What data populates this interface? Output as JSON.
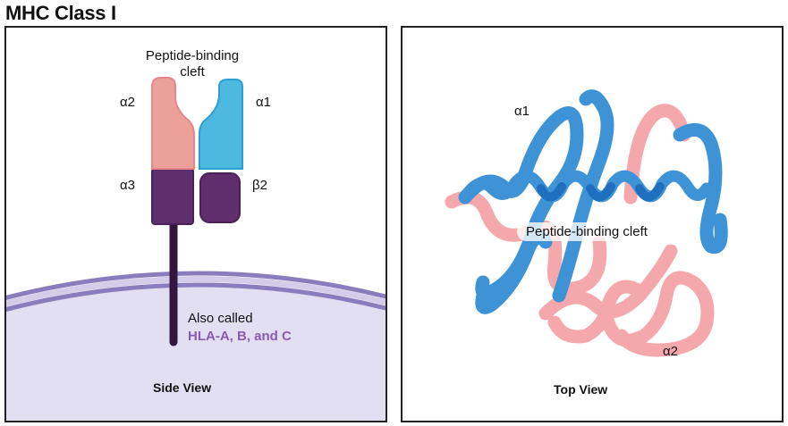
{
  "title": "MHC Class I",
  "side_view": {
    "caption": "Side View",
    "cleft_line1": "Peptide-binding",
    "cleft_line2": "cleft",
    "alpha2": "α2",
    "alpha1": "α1",
    "alpha3": "α3",
    "beta2": "β2",
    "also_called": "Also called",
    "hla_names": "HLA-A, B, and C"
  },
  "top_view": {
    "caption": "Top View",
    "alpha1": "α1",
    "alpha2": "α2",
    "cleft": "Peptide-binding cleft"
  },
  "colors": {
    "alpha1_fill": "#4db8e0",
    "alpha1_stroke": "#2a9fd0",
    "alpha2_fill": "#eba09a",
    "alpha2_stroke": "#e8868a",
    "purple_domain": "#5e2f6c",
    "membrane": "#8a7dbd",
    "cell": "#e3dff2",
    "helix_blue": "#3e93d6",
    "helix_pink": "#f5a8ab"
  }
}
